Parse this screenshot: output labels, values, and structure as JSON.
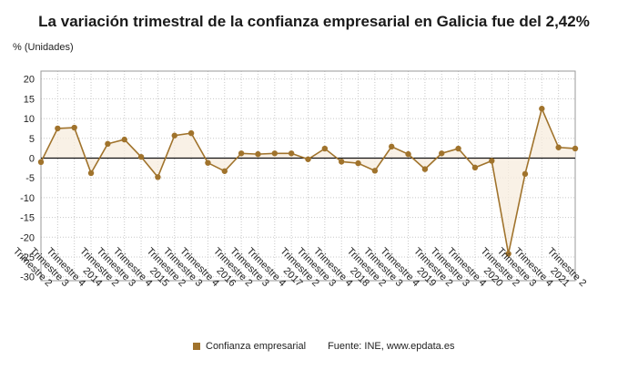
{
  "chart_data": {
    "type": "line",
    "title": "La variación trimestral de la confianza empresarial en Galicia fue del 2,42%",
    "ylabel": "% (Unidades)",
    "xlabel": "",
    "ylim": [
      -31,
      22
    ],
    "yticks": [
      20,
      15,
      10,
      5,
      0,
      -5,
      -10,
      -15,
      -20,
      -25,
      -30
    ],
    "grid": true,
    "legend_position": "bottom",
    "x_tick_labels": [
      "Trimestre 2",
      "Trimestre 3",
      "Trimestre 4",
      "2014",
      "Trimestre 2",
      "Trimestre 3",
      "Trimestre 4",
      "2015",
      "Trimestre 2",
      "Trimestre 3",
      "Trimestre 4",
      "2016",
      "Trimestre 2",
      "Trimestre 3",
      "Trimestre 4",
      "2017",
      "Trimestre 2",
      "Trimestre 3",
      "Trimestre 4",
      "2018",
      "Trimestre 2",
      "Trimestre 3",
      "Trimestre 4",
      "2019",
      "Trimestre 2",
      "Trimestre 3",
      "Trimestre 4",
      "2020",
      "Trimestre 2",
      "Trimestre 3",
      "Trimestre 4",
      "2021",
      "Trimestre 2"
    ],
    "series": [
      {
        "name": "Confianza empresarial",
        "color": "#a0732c",
        "values": [
          -1.0,
          7.5,
          7.7,
          -3.8,
          3.6,
          4.7,
          0.3,
          -4.8,
          5.7,
          6.3,
          -1.2,
          -3.3,
          1.2,
          1.0,
          1.2,
          1.2,
          -0.3,
          2.4,
          -0.9,
          -1.3,
          -3.2,
          2.9,
          1.0,
          -2.8,
          1.2,
          2.4,
          -2.4,
          -0.7,
          -24.2,
          -4.0,
          12.5,
          2.7,
          2.42
        ]
      }
    ]
  },
  "source": "Fuente: INE, www.epdata.es"
}
